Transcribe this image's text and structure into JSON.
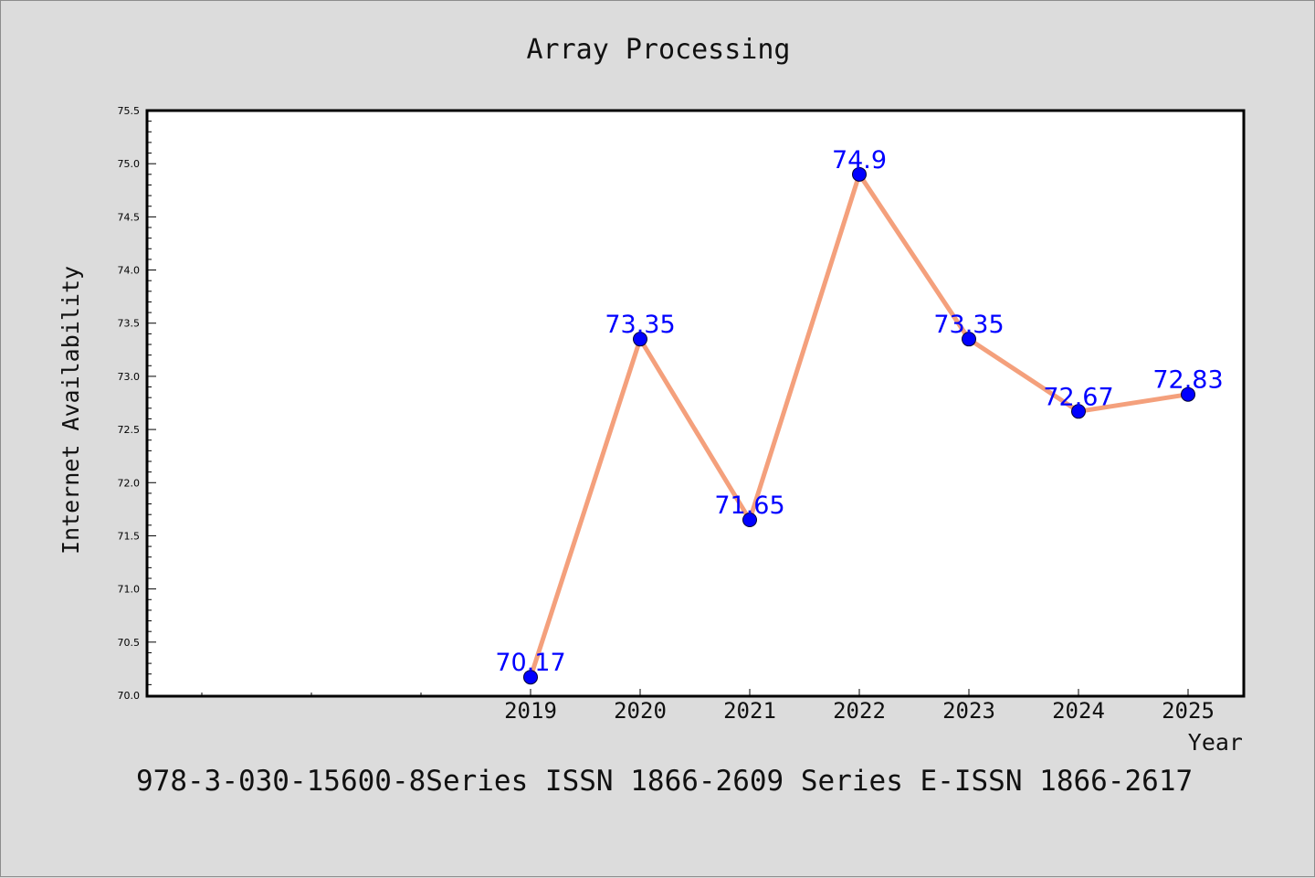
{
  "chart_data": {
    "type": "line",
    "title": "Array Processing",
    "xlabel": "Year",
    "ylabel": "Internet Availability",
    "categories": [
      "2019",
      "2020",
      "2021",
      "2022",
      "2023",
      "2024",
      "2025"
    ],
    "series": [
      {
        "values": [
          70.17,
          73.35,
          71.65,
          74.9,
          73.35,
          72.67,
          72.83
        ]
      }
    ],
    "data_labels": [
      "70.17",
      "73.35",
      "71.65",
      "74.9",
      "73.35",
      "72.67",
      "72.83"
    ],
    "ylim": [
      70.0,
      75.5
    ],
    "yticks": [
      "70.0",
      "70.5",
      "71.0",
      "71.5",
      "72.0",
      "72.5",
      "73.0",
      "73.5",
      "74.0",
      "74.5",
      "75.0",
      "75.5"
    ],
    "grid": false,
    "legend": "none",
    "line_color": "#f4a07c",
    "marker_color": "#0000ff",
    "label_color": "#0000ff",
    "footnote": "978-3-030-15600-8Series ISSN 1866-2609 Series E-ISSN 1866-2617"
  }
}
